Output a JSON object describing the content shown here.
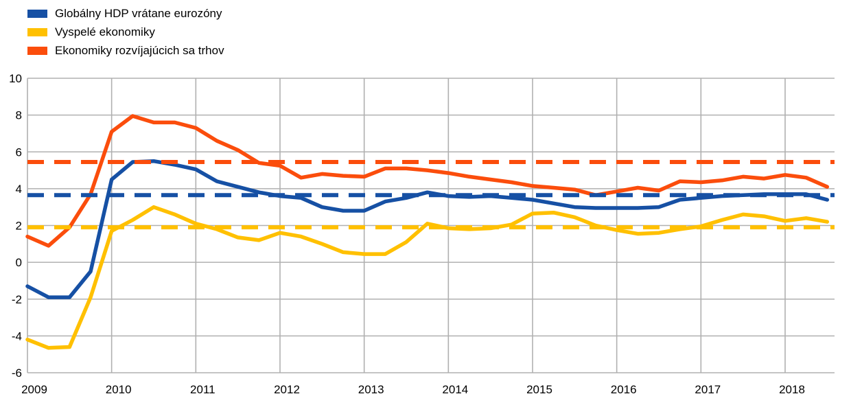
{
  "legend": {
    "items": [
      {
        "id": "global",
        "label": "Globálny HDP vrátane eurozóny",
        "color": "#1650a4"
      },
      {
        "id": "advanced",
        "label": "Vyspelé ekonomiky",
        "color": "#ffc000"
      },
      {
        "id": "emerging",
        "label": "Ekonomiky rozvíjajúcich sa trhov",
        "color": "#fb4d0c"
      }
    ]
  },
  "colors": {
    "grid": "#b0b0b0",
    "text": "#000000",
    "background": "#ffffff"
  },
  "chart_data": {
    "type": "line",
    "title": "",
    "xlabel": "",
    "ylabel": "",
    "grid": true,
    "legend_position": "top-left",
    "x_start": 2009.0,
    "x_step": 0.25,
    "xlim": [
      2009,
      2018.58
    ],
    "ylim": [
      -6,
      10
    ],
    "y_ticks": [
      10,
      8,
      6,
      4,
      2,
      0,
      -2,
      -4,
      -6
    ],
    "x_tick_labels": [
      "2009",
      "2010",
      "2011",
      "2012",
      "2013",
      "2014",
      "2015",
      "2016",
      "2017",
      "2018"
    ],
    "series": [
      {
        "id": "global",
        "name": "Globálny HDP vrátane eurozóny",
        "color": "#1650a4",
        "values": [
          -1.3,
          -1.9,
          -1.9,
          -0.5,
          4.5,
          5.45,
          5.5,
          5.3,
          5.05,
          4.4,
          4.1,
          3.8,
          3.6,
          3.5,
          3.0,
          2.8,
          2.8,
          3.3,
          3.5,
          3.8,
          3.6,
          3.55,
          3.6,
          3.5,
          3.4,
          3.2,
          3.0,
          2.95,
          2.95,
          2.95,
          3.0,
          3.4,
          3.5,
          3.6,
          3.65,
          3.7,
          3.7,
          3.7,
          3.4
        ]
      },
      {
        "id": "advanced",
        "name": "Vyspelé ekonomiky",
        "color": "#ffc000",
        "values": [
          -4.2,
          -4.65,
          -4.6,
          -1.9,
          1.7,
          2.3,
          3.0,
          2.6,
          2.1,
          1.8,
          1.35,
          1.2,
          1.6,
          1.4,
          1.0,
          0.55,
          0.45,
          0.45,
          1.1,
          2.1,
          1.85,
          1.8,
          1.85,
          2.05,
          2.65,
          2.7,
          2.45,
          2.0,
          1.75,
          1.55,
          1.6,
          1.8,
          1.95,
          2.3,
          2.6,
          2.5,
          2.25,
          2.4,
          2.2
        ]
      },
      {
        "id": "emerging",
        "name": "Ekonomiky rozvíjajúcich sa trhov",
        "color": "#fb4d0c",
        "values": [
          1.4,
          0.9,
          1.9,
          3.7,
          7.1,
          7.95,
          7.6,
          7.6,
          7.3,
          6.6,
          6.1,
          5.4,
          5.25,
          4.6,
          4.8,
          4.7,
          4.65,
          5.1,
          5.1,
          5.0,
          4.85,
          4.65,
          4.5,
          4.35,
          4.15,
          4.05,
          3.95,
          3.65,
          3.85,
          4.05,
          3.9,
          4.4,
          4.35,
          4.45,
          4.65,
          4.55,
          4.75,
          4.6,
          4.1
        ]
      }
    ],
    "average_lines": [
      {
        "series_id": "emerging",
        "value": 5.45,
        "color": "#fb4d0c",
        "style": "dashed"
      },
      {
        "series_id": "global",
        "value": 3.65,
        "color": "#1650a4",
        "style": "dashed"
      },
      {
        "series_id": "advanced",
        "value": 1.9,
        "color": "#ffc000",
        "style": "dashed"
      }
    ]
  }
}
